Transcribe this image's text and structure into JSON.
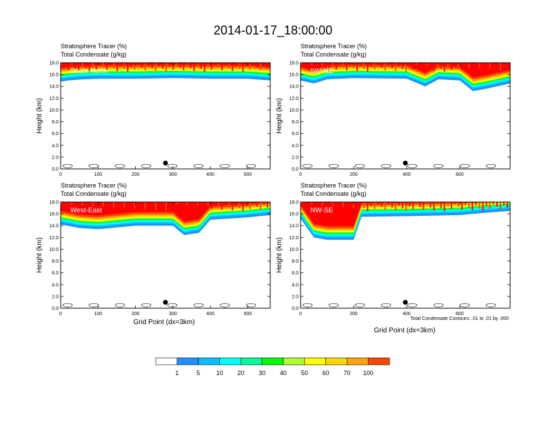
{
  "title": "2014-01-17_18:00:00",
  "field_labels": {
    "stratosphere_tracer": "Stratosphere Tracer   (%)",
    "total_condensate": "Total Condensate   (g/kg)"
  },
  "ylabel": "Height (km)",
  "xlabel": "Grid Point (dx=3km)",
  "contour_note": "Total Condensate Contours: .01 to .01 by .000",
  "colors": [
    "#ffffff",
    "#1e90ff",
    "#00bfff",
    "#00ffff",
    "#00fa9a",
    "#00ff00",
    "#adff2f",
    "#ffff00",
    "#ffd700",
    "#ffa500",
    "#ff4500",
    "#ff0000"
  ],
  "colorbar": {
    "labels": [
      "1",
      "5",
      "10",
      "20",
      "30",
      "40",
      "50",
      "60",
      "70",
      "100"
    ]
  },
  "chart_data": [
    {
      "type": "heatmap",
      "panel": "South-North",
      "xlim": [
        0,
        560
      ],
      "ylim": [
        0,
        18
      ],
      "xticks": [
        "0",
        "100",
        "200",
        "300",
        "400",
        "500"
      ],
      "yticks": [
        "0.0",
        "2.0",
        "4.0",
        "6.0",
        "8.0",
        "10.0",
        "12.0",
        "14.0",
        "16.0",
        "18.0"
      ],
      "tracer_layer": [
        [
          0,
          14.8
        ],
        [
          20,
          15.0
        ],
        [
          60,
          15.2
        ],
        [
          100,
          15.3
        ],
        [
          200,
          15.3
        ],
        [
          300,
          15.4
        ],
        [
          400,
          15.3
        ],
        [
          500,
          15.3
        ],
        [
          560,
          15.0
        ]
      ],
      "marker": {
        "x": 280,
        "y": 1.0
      }
    },
    {
      "type": "heatmap",
      "panel": "SW-NE",
      "xlim": [
        0,
        790
      ],
      "ylim": [
        0,
        18
      ],
      "xticks": [
        "0",
        "200",
        "400",
        "600"
      ],
      "yticks": [
        "0.0",
        "2.0",
        "4.0",
        "6.0",
        "8.0",
        "10.0",
        "12.0",
        "14.0",
        "16.0",
        "18.0"
      ],
      "tracer_layer": [
        [
          0,
          15.0
        ],
        [
          50,
          14.5
        ],
        [
          100,
          15.2
        ],
        [
          200,
          15.4
        ],
        [
          400,
          15.3
        ],
        [
          470,
          14.0
        ],
        [
          520,
          15.2
        ],
        [
          600,
          15.0
        ],
        [
          650,
          13.2
        ],
        [
          700,
          13.6
        ],
        [
          790,
          14.5
        ]
      ],
      "marker": {
        "x": 395,
        "y": 1.0
      }
    },
    {
      "type": "heatmap",
      "panel": "West-East",
      "xlim": [
        0,
        560
      ],
      "ylim": [
        0,
        18
      ],
      "xticks": [
        "0",
        "100",
        "200",
        "300",
        "400",
        "500"
      ],
      "yticks": [
        "0.0",
        "2.0",
        "4.0",
        "6.0",
        "8.0",
        "10.0",
        "12.0",
        "14.0",
        "16.0",
        "18.0"
      ],
      "tracer_layer": [
        [
          0,
          14.2
        ],
        [
          50,
          13.6
        ],
        [
          100,
          13.4
        ],
        [
          200,
          14.0
        ],
        [
          300,
          14.0
        ],
        [
          330,
          12.4
        ],
        [
          370,
          12.8
        ],
        [
          400,
          15.0
        ],
        [
          500,
          15.4
        ],
        [
          560,
          15.8
        ]
      ],
      "marker": {
        "x": 280,
        "y": 1.0
      }
    },
    {
      "type": "heatmap",
      "panel": "NW-SE",
      "xlim": [
        0,
        790
      ],
      "ylim": [
        0,
        18
      ],
      "xticks": [
        "0",
        "200",
        "400",
        "600"
      ],
      "yticks": [
        "0.0",
        "2.0",
        "4.0",
        "6.0",
        "8.0",
        "10.0",
        "12.0",
        "14.0",
        "16.0",
        "18.0"
      ],
      "tracer_layer": [
        [
          0,
          15.2
        ],
        [
          50,
          12.0
        ],
        [
          100,
          11.6
        ],
        [
          200,
          11.6
        ],
        [
          230,
          15.5
        ],
        [
          400,
          15.6
        ],
        [
          600,
          15.8
        ],
        [
          700,
          16.2
        ],
        [
          790,
          16.5
        ]
      ],
      "marker": {
        "x": 395,
        "y": 1.0
      }
    }
  ]
}
